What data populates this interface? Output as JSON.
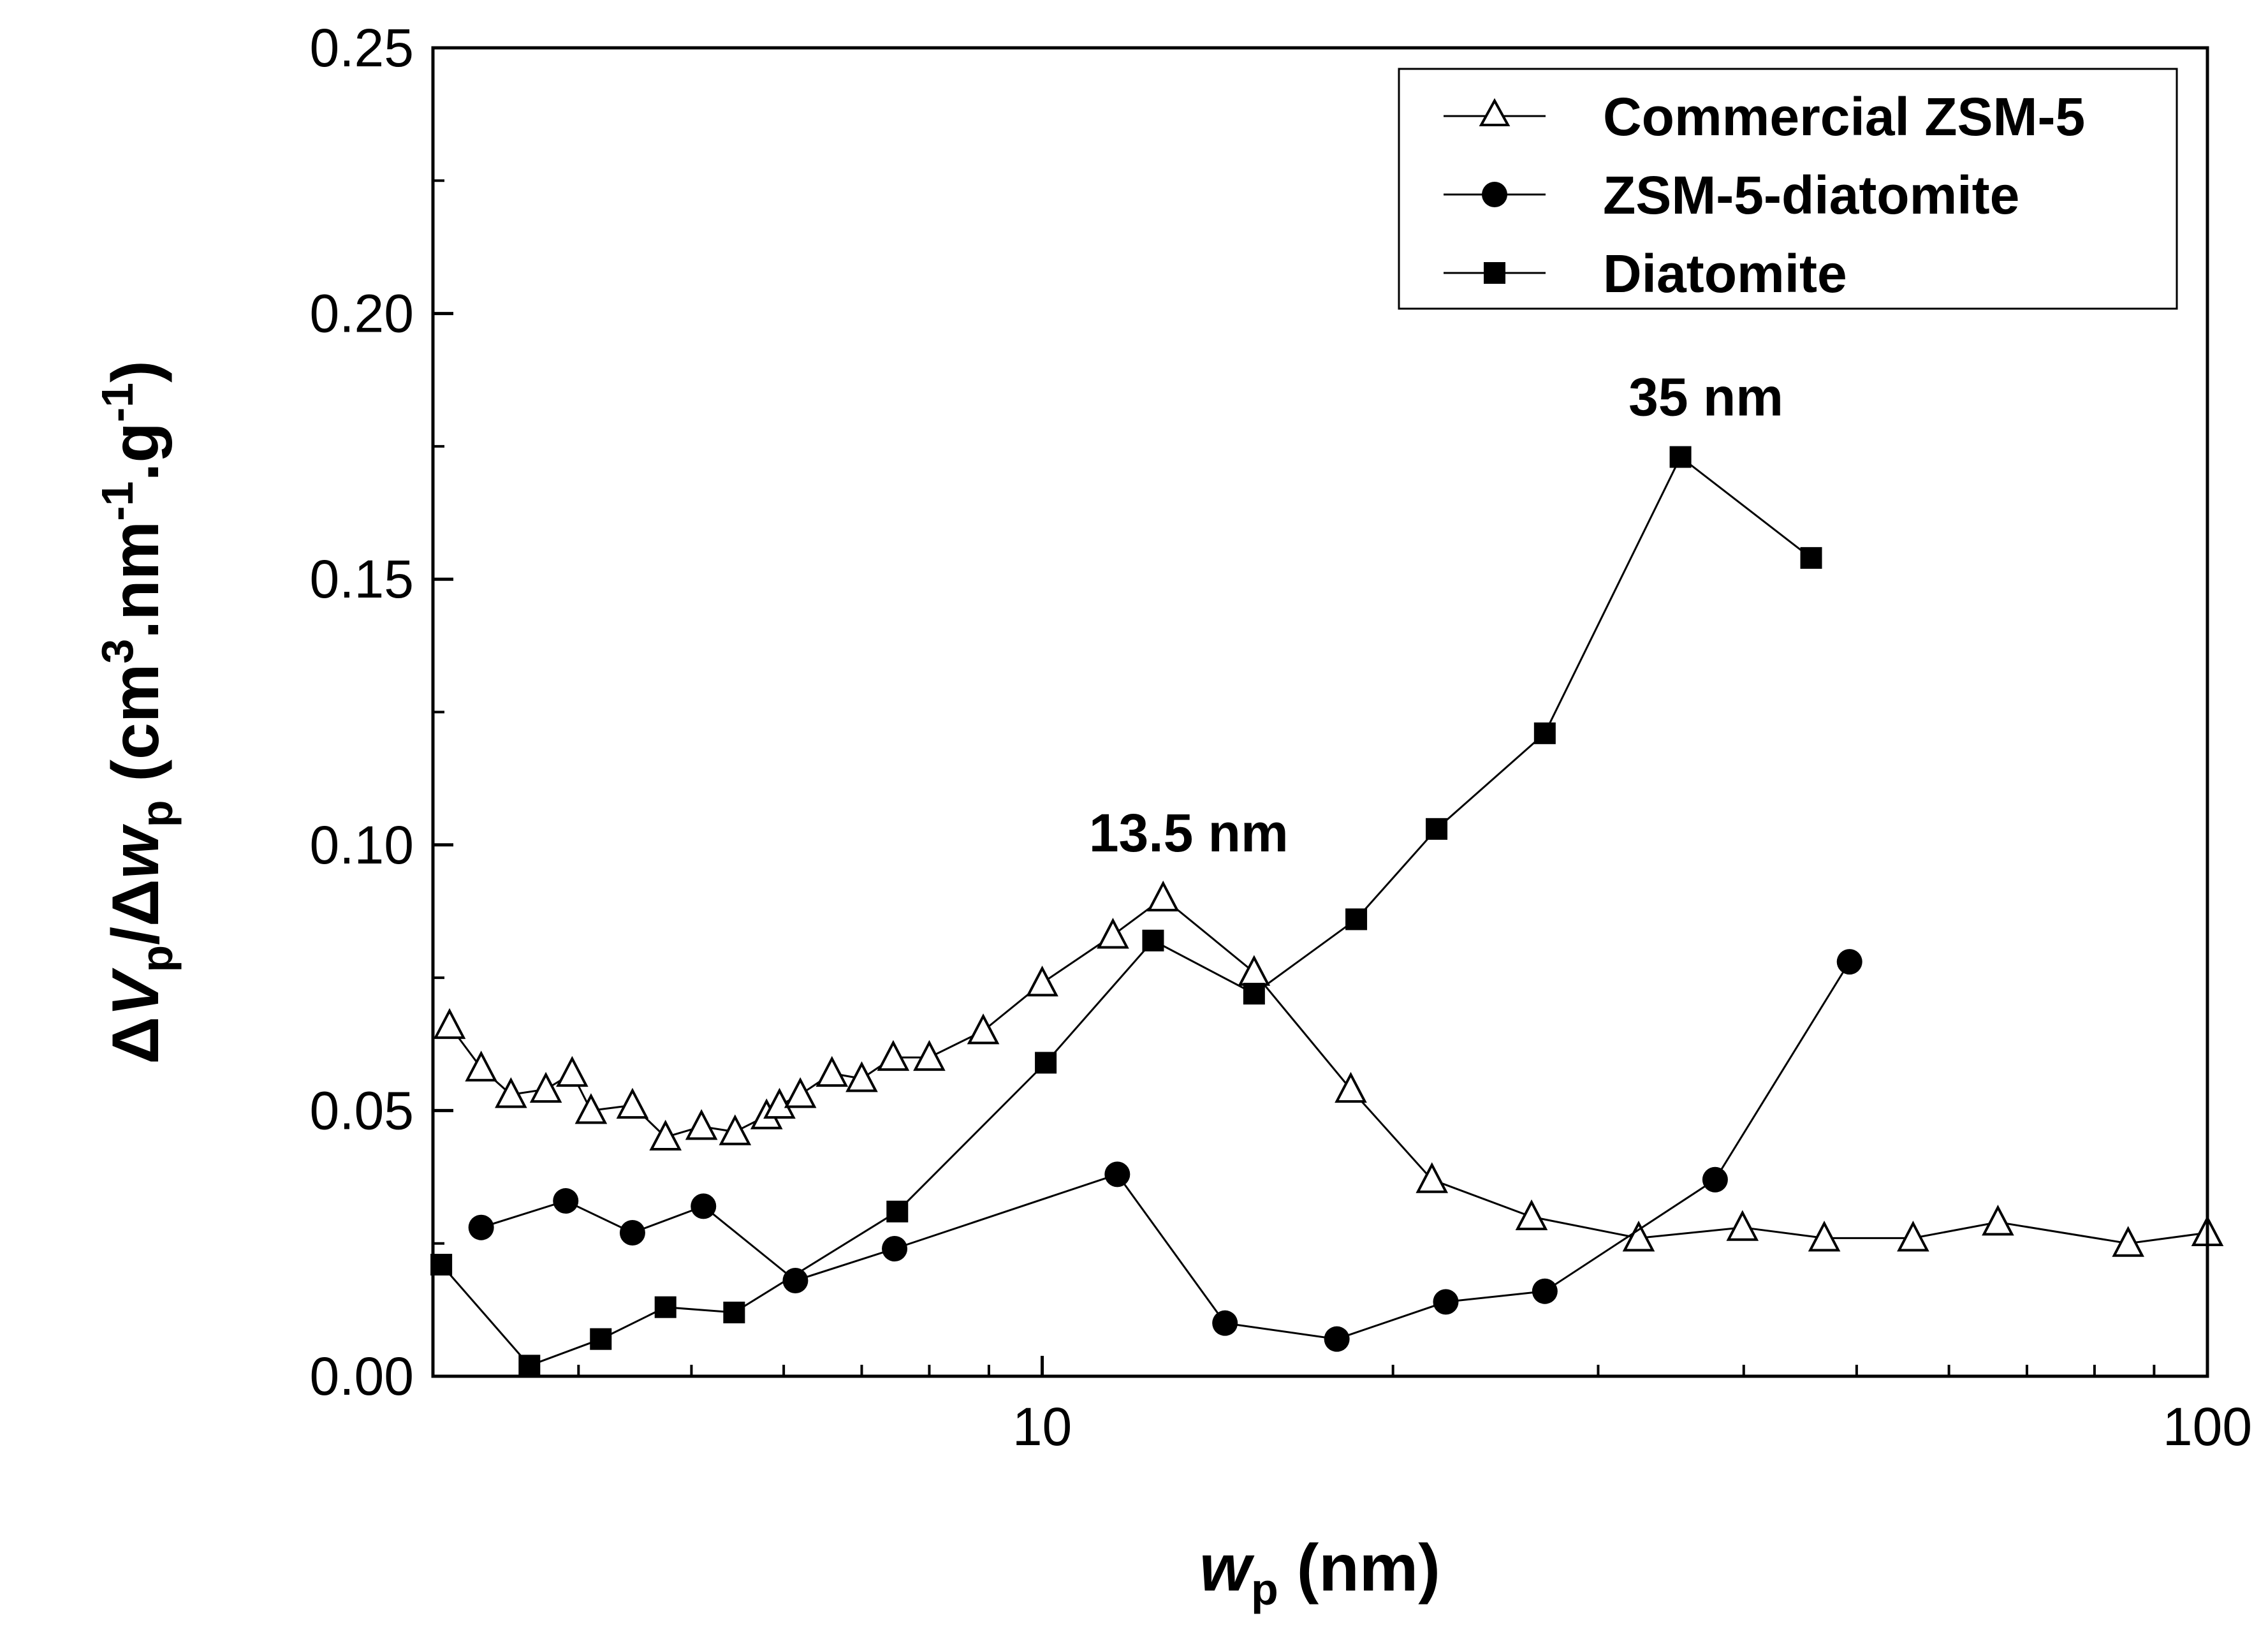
{
  "chart_data": {
    "type": "line",
    "title": "",
    "xlabel": {
      "main": "w",
      "sub": "p",
      "unit": " (nm)"
    },
    "ylabel": {
      "delta1": "Δ",
      "v": "V",
      "v_sub": "p",
      "slash": "/",
      "delta2": "Δ",
      "w": "w",
      "w_sub": "p",
      "unit_open": " (cm",
      "unit_sup1": "3",
      "unit_mid": ".nm",
      "unit_sup2": "-1",
      "unit_g": ".g",
      "unit_sup3": "-1",
      "unit_close": ")"
    },
    "xscale": "log",
    "xlim": [
      3,
      100
    ],
    "ylim": [
      0,
      0.25
    ],
    "x_ticks": [
      {
        "value": 10,
        "label": "10"
      },
      {
        "value": 100,
        "label": "100"
      }
    ],
    "y_ticks": [
      {
        "value": 0,
        "label": "0.00"
      },
      {
        "value": 0.05,
        "label": "0.05"
      },
      {
        "value": 0.1,
        "label": "0.10"
      },
      {
        "value": 0.15,
        "label": "0.15"
      },
      {
        "value": 0.2,
        "label": "0.20"
      },
      {
        "value": 0.25,
        "label": "0.25"
      }
    ],
    "legend_position": "top-right",
    "series": [
      {
        "name": "Commercial ZSM-5",
        "marker": "open-triangle",
        "x": [
          3.1,
          3.3,
          3.5,
          3.75,
          3.95,
          4.1,
          4.45,
          4.75,
          5.1,
          5.45,
          5.8,
          5.95,
          6.2,
          6.6,
          7.0,
          7.45,
          8.0,
          8.9,
          10.0,
          11.5,
          12.7,
          15.2,
          18.4,
          21.6,
          26.3,
          32.5,
          39.9,
          46.9,
          55.9,
          66.1,
          85.5,
          100
        ],
        "y": [
          0.066,
          0.058,
          0.053,
          0.054,
          0.057,
          0.05,
          0.051,
          0.045,
          0.047,
          0.046,
          0.049,
          0.051,
          0.053,
          0.057,
          0.056,
          0.06,
          0.06,
          0.065,
          0.074,
          0.083,
          0.09,
          0.076,
          0.054,
          0.037,
          0.03,
          0.026,
          0.028,
          0.026,
          0.026,
          0.029,
          0.025,
          0.027
        ]
      },
      {
        "name": "ZSM-5-diatomite",
        "marker": "filled-circle",
        "x": [
          3.3,
          3.9,
          4.45,
          5.12,
          6.14,
          7.47,
          11.6,
          14.35,
          17.9,
          22.2,
          27.0,
          37.8,
          49.3
        ],
        "y": [
          0.028,
          0.033,
          0.027,
          0.032,
          0.018,
          0.024,
          0.038,
          0.01,
          0.007,
          0.014,
          0.016,
          0.037,
          0.078
        ]
      },
      {
        "name": "Diatomite",
        "marker": "filled-square",
        "x": [
          3.05,
          3.63,
          4.18,
          4.75,
          5.44,
          7.51,
          10.07,
          12.45,
          15.2,
          18.6,
          21.8,
          27.0,
          35.3,
          45.7
        ],
        "y": [
          0.021,
          0.002,
          0.007,
          0.013,
          0.012,
          0.031,
          0.059,
          0.082,
          0.072,
          0.086,
          0.103,
          0.121,
          0.173,
          0.154
        ]
      }
    ],
    "annotations": [
      {
        "text": "13.5 nm",
        "x": 12.7,
        "y": 0.094
      },
      {
        "text": "35 nm",
        "x": 35.3,
        "y": 0.176
      }
    ]
  }
}
